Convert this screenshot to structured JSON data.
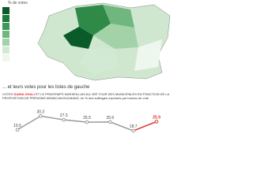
{
  "map": {
    "legend_title": "% de votes"
  },
  "chart_data": {
    "type": "line",
    "title": "... et leurs votes pour les listes de gauche",
    "subtitle": [
      "VOTES ",
      "SAMIA GHALI",
      " ET LE PRINTEMPS MARSEILLAIS AU 1ER TOUR DES MUNICIPALES EN FONCTION DE LA PROPORTION DE PRÉNOMS ARABO-MUSULMANS, en % des suffrages exprimés par bureau de vote"
    ],
    "categories": [
      null,
      null,
      null,
      null,
      null,
      null,
      null
    ],
    "values": [
      19.5,
      30.3,
      27.3,
      25.5,
      25.6,
      18.7,
      25.9
    ],
    "color": "#9a9a9a",
    "highlight_color": "#e0312b",
    "ylim": [
      15,
      33
    ]
  }
}
